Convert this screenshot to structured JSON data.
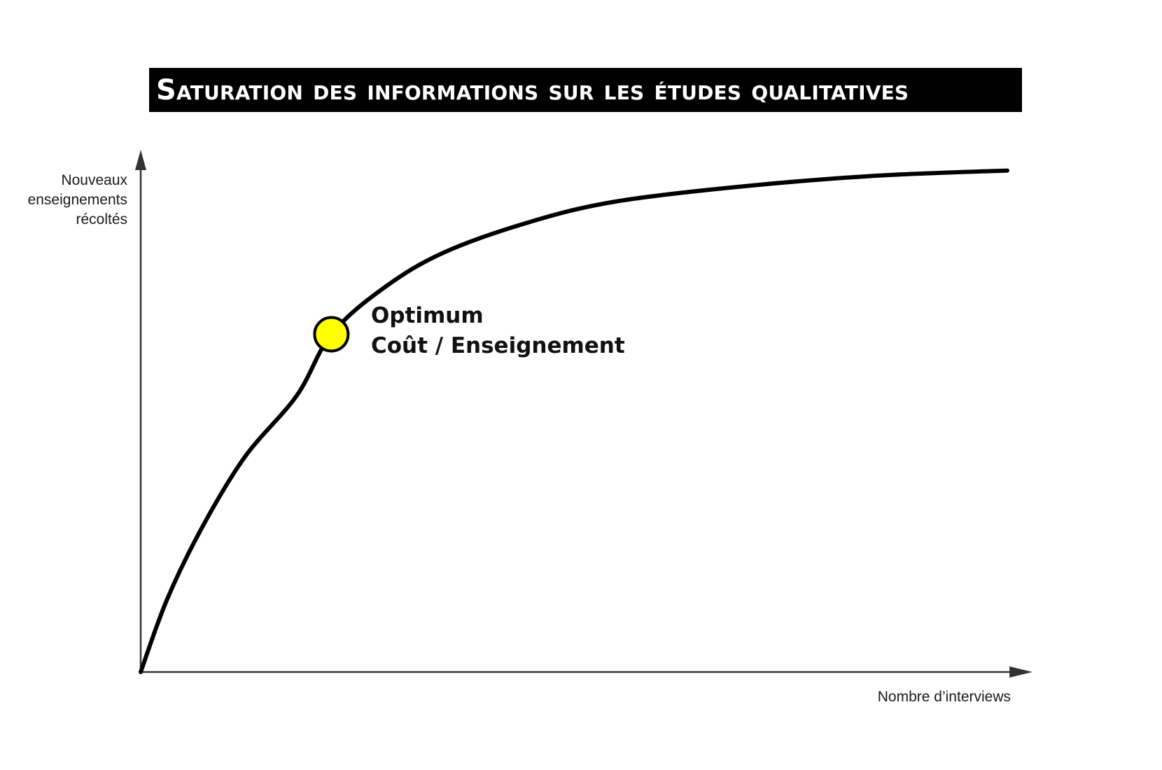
{
  "chart_data": {
    "type": "line",
    "title": "Saturation des informations sur les études qualitatives",
    "ylabel": [
      "Nouveaux",
      "enseignements",
      "récoltés"
    ],
    "xlabel": "Nombre d’interviews",
    "x_ticks": [],
    "y_ticks": [],
    "grid": false,
    "series": [
      {
        "x": [
          0,
          0.03,
          0.07,
          0.12,
          0.18,
          0.22,
          0.28,
          0.35,
          0.45,
          0.55,
          0.7,
          0.85,
          1.0
        ],
        "y": [
          0,
          0.14,
          0.28,
          0.42,
          0.54,
          0.66,
          0.75,
          0.82,
          0.88,
          0.92,
          0.95,
          0.97,
          0.98
        ]
      }
    ],
    "annotations": [
      {
        "label_lines": [
          "Optimum",
          "Coût / Enseignement"
        ],
        "x": 0.22,
        "y": 0.66,
        "marker_color": "#ffff00"
      }
    ]
  },
  "colors": {
    "curve": "#000000",
    "axes": "#333333",
    "marker_fill": "#ffff00",
    "title_bg": "#000000",
    "title_text": "#ffffff"
  }
}
